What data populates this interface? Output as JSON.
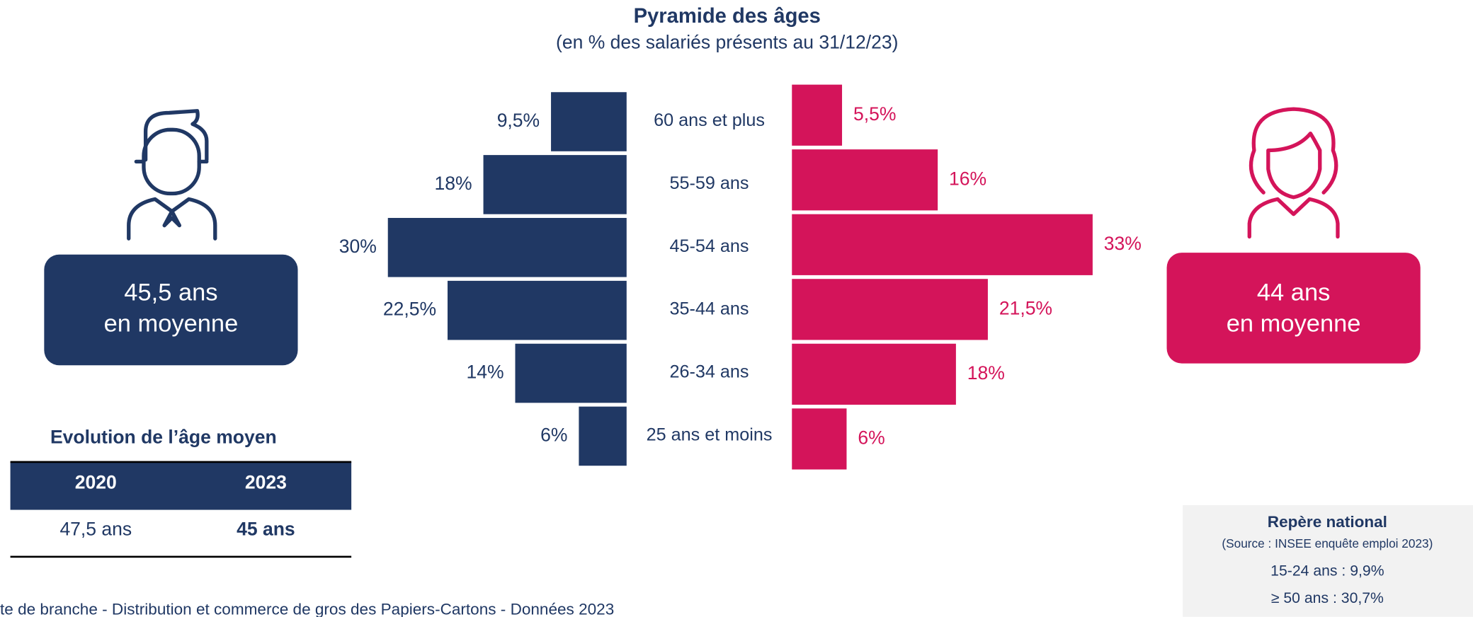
{
  "chart_data": {
    "type": "pyramid",
    "title": "Pyramide des âges",
    "subtitle": "(en % des salariés présents au 31/12/23)",
    "categories": [
      "60 ans et plus",
      "55-59 ans",
      "45-54 ans",
      "35-44 ans",
      "26-34 ans",
      "25 ans et moins"
    ],
    "series": [
      {
        "color": "#203864",
        "values": [
          9.5,
          18,
          30,
          22.5,
          14,
          6
        ],
        "value_labels": [
          "9,5%",
          "18%",
          "30%",
          "22,5%",
          "14%",
          "6%"
        ]
      },
      {
        "color": "#d4145a",
        "values": [
          5.5,
          16,
          33,
          21.5,
          18,
          6
        ],
        "value_labels": [
          "5,5%",
          "16%",
          "33%",
          "21,5%",
          "18%",
          "6%"
        ]
      }
    ]
  },
  "men_average": {
    "line1": "45,5 ans",
    "line2": "en moyenne"
  },
  "women_average": {
    "line1": "44 ans",
    "line2": "en moyenne"
  },
  "evolution": {
    "title": "Evolution de l’âge moyen",
    "headers": [
      "2020",
      "2023"
    ],
    "row": [
      "47,5 ans",
      "45 ans"
    ]
  },
  "national": {
    "title": "Repère national",
    "source": "(Source : INSEE enquête emploi 2023)",
    "lines": [
      "15-24 ans : 9,9%",
      "≥ 50 ans : 30,7%"
    ]
  },
  "footer": "te de branche - Distribution et commerce de gros des Papiers-Cartons - Données 2023"
}
